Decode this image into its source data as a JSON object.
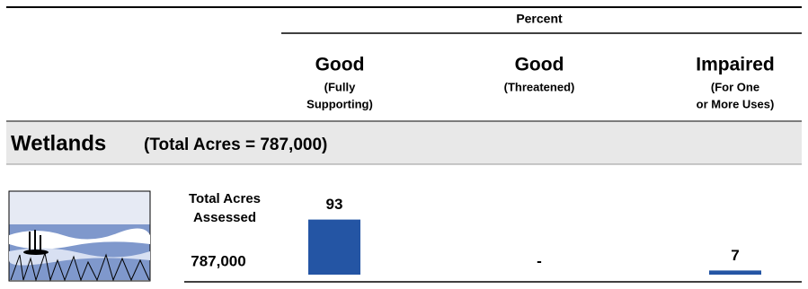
{
  "chart_data": {
    "type": "bar",
    "column_header": "Percent",
    "categories": [
      "Good",
      "Good",
      "Impaired"
    ],
    "category_notes": [
      [
        "(Fully",
        "Supporting)"
      ],
      [
        "(Threatened)"
      ],
      [
        "(For One",
        "or More Uses)"
      ]
    ],
    "section": "Wetlands",
    "section_note": "(Total Acres = 787,000)",
    "row_label": [
      "Total Acres",
      "Assessed"
    ],
    "row_value": "787,000",
    "values": [
      93,
      null,
      7
    ],
    "value_labels": [
      "93",
      "-",
      "7"
    ],
    "color": "#2455a4"
  }
}
